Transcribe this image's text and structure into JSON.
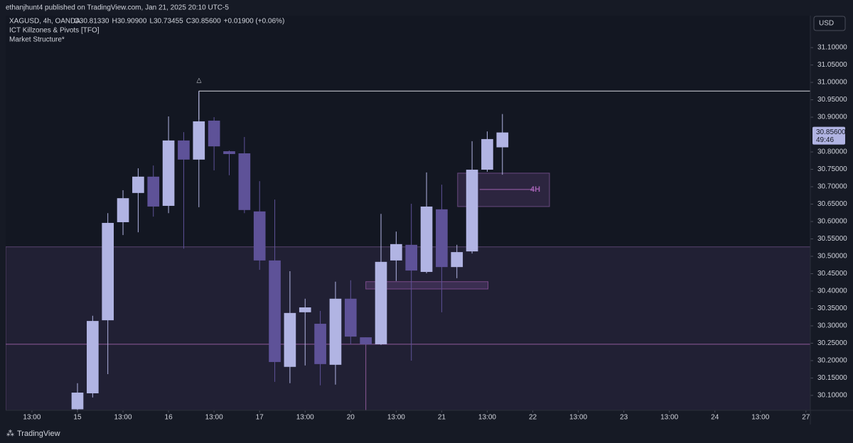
{
  "chart_data": {
    "type": "candlestick",
    "publisher": "ethanjhunt4 published on TradingView.com, Jan 21, 2025 20:10 UTC-5",
    "symbol": "XAGUSD, 4h, OANDA",
    "ohlc_labels": [
      "O30.81330",
      "H30.90900",
      "L30.73455",
      "C30.85600",
      "+0.01900 (+0.06%)"
    ],
    "indicators": [
      "ICT Killzones & Pivots [TFO]",
      "Market Structure*"
    ],
    "currency": "USD",
    "brand": "TradingView",
    "annotation": "△",
    "last_price": {
      "value": 30.856,
      "label": "30.85600"
    },
    "countdown": "49:46",
    "up_color": "#b1b4e3",
    "down_color": "#5e5298",
    "open": [
      30.06,
      30.106,
      30.316,
      30.598,
      30.682,
      30.729,
      30.645,
      30.833,
      30.778,
      30.89,
      30.802,
      30.796,
      30.629,
      30.488,
      30.182,
      30.339,
      30.306,
      30.188,
      30.378,
      30.267,
      30.247,
      30.488,
      30.533,
      30.455,
      30.635,
      30.469,
      30.514,
      30.749,
      30.8133
    ],
    "high": [
      30.135,
      30.329,
      30.624,
      30.69,
      30.753,
      30.761,
      30.902,
      30.857,
      30.975,
      30.9,
      30.804,
      30.843,
      30.716,
      30.663,
      30.457,
      30.378,
      30.343,
      30.427,
      30.431,
      30.267,
      30.622,
      30.571,
      30.651,
      30.741,
      30.706,
      30.533,
      30.831,
      30.859,
      30.909
    ],
    "low": [
      30.057,
      30.094,
      30.161,
      30.561,
      30.569,
      30.614,
      30.624,
      30.522,
      30.641,
      30.747,
      30.733,
      30.624,
      30.461,
      30.139,
      30.135,
      30.186,
      30.129,
      30.131,
      30.247,
      30.245,
      30.245,
      30.429,
      30.2,
      30.451,
      30.339,
      30.437,
      30.508,
      30.743,
      30.73455
    ],
    "close": [
      30.108,
      30.314,
      30.596,
      30.667,
      30.729,
      30.643,
      30.833,
      30.778,
      30.888,
      30.816,
      30.794,
      30.633,
      30.488,
      30.196,
      30.337,
      30.353,
      30.19,
      30.378,
      30.269,
      30.247,
      30.484,
      30.535,
      30.459,
      30.643,
      30.469,
      30.512,
      30.749,
      30.837,
      30.856
    ],
    "range_zone_top": 30.527,
    "range_line": 30.247,
    "high_line": 30.975,
    "order_block": {
      "label": "4H",
      "top": 30.739,
      "bottom": 30.643,
      "mid": 30.692
    },
    "fvg": {
      "top": 30.427,
      "bottom": 30.406
    },
    "xlim": [
      -4.73,
      48.29
    ],
    "ylim": [
      30.057,
      31.192
    ],
    "xticks": [
      {
        "value": -3,
        "label": "13:00"
      },
      {
        "value": 0,
        "label": "15"
      },
      {
        "value": 3,
        "label": "13:00"
      },
      {
        "value": 6,
        "label": "16"
      },
      {
        "value": 9,
        "label": "13:00"
      },
      {
        "value": 12,
        "label": "17"
      },
      {
        "value": 15,
        "label": "13:00"
      },
      {
        "value": 18,
        "label": "20"
      },
      {
        "value": 21,
        "label": "13:00"
      },
      {
        "value": 24,
        "label": "21"
      },
      {
        "value": 27,
        "label": "13:00"
      },
      {
        "value": 30,
        "label": "22"
      },
      {
        "value": 33,
        "label": "13:00"
      },
      {
        "value": 36,
        "label": "23"
      },
      {
        "value": 39,
        "label": "13:00"
      },
      {
        "value": 42,
        "label": "24"
      },
      {
        "value": 45,
        "label": "13:00"
      },
      {
        "value": 48,
        "label": "27"
      }
    ],
    "yticks": [
      {
        "value": 30.1,
        "label": "30.10000"
      },
      {
        "value": 30.15,
        "label": "30.15000"
      },
      {
        "value": 30.2,
        "label": "30.20000"
      },
      {
        "value": 30.25,
        "label": "30.25000"
      },
      {
        "value": 30.3,
        "label": "30.30000"
      },
      {
        "value": 30.35,
        "label": "30.35000"
      },
      {
        "value": 30.4,
        "label": "30.40000"
      },
      {
        "value": 30.45,
        "label": "30.45000"
      },
      {
        "value": 30.5,
        "label": "30.50000"
      },
      {
        "value": 30.55,
        "label": "30.55000"
      },
      {
        "value": 30.6,
        "label": "30.60000"
      },
      {
        "value": 30.65,
        "label": "30.65000"
      },
      {
        "value": 30.7,
        "label": "30.70000"
      },
      {
        "value": 30.75,
        "label": "30.75000"
      },
      {
        "value": 30.8,
        "label": "30.80000"
      },
      {
        "value": 30.9,
        "label": "30.90000"
      },
      {
        "value": 30.95,
        "label": "30.95000"
      },
      {
        "value": 31.0,
        "label": "31.00000"
      },
      {
        "value": 31.05,
        "label": "31.05000"
      },
      {
        "value": 31.1,
        "label": "31.10000"
      }
    ]
  }
}
